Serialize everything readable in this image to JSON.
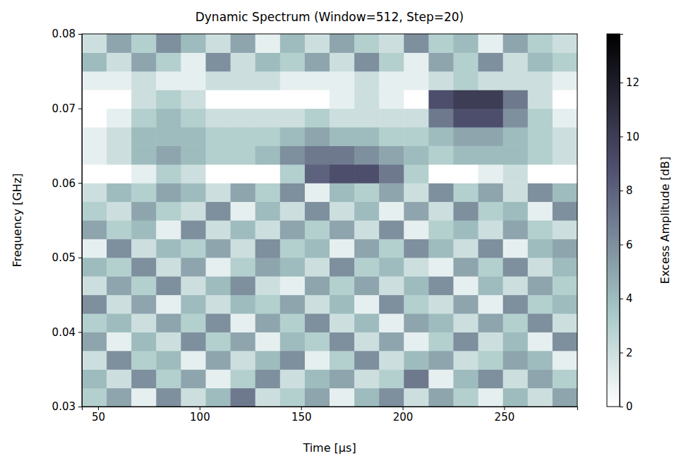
{
  "chart_data": {
    "type": "heatmap",
    "title": "Dynamic Spectrum (Window=512, Step=20)",
    "x_label": "Time [µs]",
    "y_label": "Frequency [GHz]",
    "xlim": [
      42,
      286
    ],
    "ylim": [
      0.03,
      0.08
    ],
    "xticks": [
      50,
      100,
      150,
      200,
      250
    ],
    "yticks": [
      0.03,
      0.04,
      0.05,
      0.06,
      0.07,
      0.08
    ],
    "color": "bone_r",
    "x_edges": [
      42,
      54.2,
      66.4,
      78.6,
      90.8,
      103,
      115.2,
      127.4,
      139.6,
      151.8,
      164,
      176.2,
      188.4,
      200.6,
      212.8,
      225,
      237.2,
      249.4,
      261.6,
      273.8,
      286
    ],
    "y_edges": [
      0.03,
      0.0325,
      0.035,
      0.0375,
      0.04,
      0.0425,
      0.045,
      0.0475,
      0.05,
      0.0525,
      0.055,
      0.0575,
      0.06,
      0.0625,
      0.065,
      0.0675,
      0.07,
      0.0725,
      0.075,
      0.0775,
      0.08
    ],
    "z": [
      [
        3,
        5,
        1,
        6,
        2,
        4,
        7,
        2,
        3,
        5,
        1,
        4,
        6,
        2,
        5,
        3,
        1,
        4,
        2,
        5
      ],
      [
        4,
        2,
        6,
        3,
        5,
        1,
        3,
        6,
        2,
        4,
        5,
        2,
        3,
        7,
        1,
        4,
        6,
        2,
        5,
        3
      ],
      [
        2,
        6,
        3,
        4,
        1,
        5,
        2,
        4,
        6,
        1,
        3,
        6,
        2,
        4,
        5,
        2,
        3,
        5,
        4,
        1
      ],
      [
        5,
        1,
        4,
        2,
        6,
        3,
        5,
        1,
        4,
        3,
        6,
        2,
        5,
        1,
        3,
        6,
        2,
        4,
        1,
        6
      ],
      [
        3,
        4,
        2,
        5,
        3,
        6,
        1,
        5,
        3,
        6,
        2,
        4,
        1,
        5,
        4,
        2,
        5,
        3,
        6,
        2
      ],
      [
        6,
        2,
        5,
        1,
        4,
        2,
        4,
        3,
        5,
        2,
        4,
        1,
        6,
        3,
        2,
        5,
        1,
        6,
        3,
        4
      ],
      [
        2,
        5,
        3,
        6,
        2,
        4,
        6,
        2,
        1,
        5,
        3,
        5,
        2,
        4,
        6,
        1,
        4,
        2,
        5,
        3
      ],
      [
        4,
        3,
        6,
        2,
        5,
        1,
        3,
        5,
        4,
        2,
        6,
        3,
        4,
        2,
        1,
        5,
        3,
        6,
        2,
        4
      ],
      [
        1,
        6,
        2,
        4,
        3,
        5,
        2,
        6,
        3,
        4,
        1,
        5,
        3,
        6,
        4,
        2,
        6,
        1,
        4,
        5
      ],
      [
        5,
        3,
        4,
        1,
        6,
        2,
        4,
        2,
        5,
        3,
        5,
        2,
        6,
        1,
        3,
        4,
        2,
        5,
        3,
        2
      ],
      [
        3,
        2,
        5,
        3,
        2,
        6,
        1,
        4,
        2,
        6,
        2,
        4,
        1,
        5,
        2,
        6,
        3,
        4,
        1,
        6
      ],
      [
        2,
        4,
        3,
        5,
        4,
        2,
        5,
        3,
        6,
        1,
        4,
        3,
        5,
        2,
        6,
        3,
        5,
        2,
        6,
        4
      ],
      [
        0,
        0,
        1,
        3,
        2,
        0,
        0,
        0,
        3,
        8,
        9,
        9,
        7,
        3,
        0,
        0,
        1,
        2,
        0,
        0
      ],
      [
        1,
        2,
        4,
        5,
        4,
        3,
        3,
        4,
        6,
        7,
        7,
        6,
        5,
        4,
        3,
        4,
        4,
        4,
        3,
        2
      ],
      [
        1,
        2,
        4,
        4,
        4,
        3,
        3,
        3,
        4,
        5,
        4,
        4,
        3,
        3,
        4,
        5,
        5,
        4,
        3,
        2
      ],
      [
        0,
        1,
        3,
        4,
        3,
        2,
        2,
        2,
        2,
        3,
        2,
        2,
        2,
        2,
        7,
        9,
        9,
        6,
        3,
        1
      ],
      [
        0,
        0,
        2,
        3,
        2,
        0,
        0,
        0,
        0,
        0,
        1,
        2,
        1,
        0,
        9,
        10,
        10,
        7,
        2,
        0
      ],
      [
        1,
        1,
        2,
        1,
        1,
        2,
        2,
        2,
        1,
        1,
        1,
        2,
        1,
        1,
        2,
        3,
        2,
        2,
        2,
        1
      ],
      [
        4,
        2,
        5,
        3,
        1,
        6,
        2,
        4,
        3,
        5,
        2,
        6,
        3,
        1,
        5,
        3,
        6,
        2,
        4,
        3
      ],
      [
        2,
        5,
        3,
        6,
        4,
        2,
        5,
        1,
        4,
        2,
        5,
        3,
        2,
        6,
        3,
        4,
        1,
        5,
        3,
        2
      ]
    ],
    "colorbar": {
      "label": "Excess Amplitude [dB]",
      "range": [
        0,
        13.8
      ],
      "ticks": [
        0,
        2,
        4,
        6,
        8,
        10,
        12
      ]
    }
  }
}
